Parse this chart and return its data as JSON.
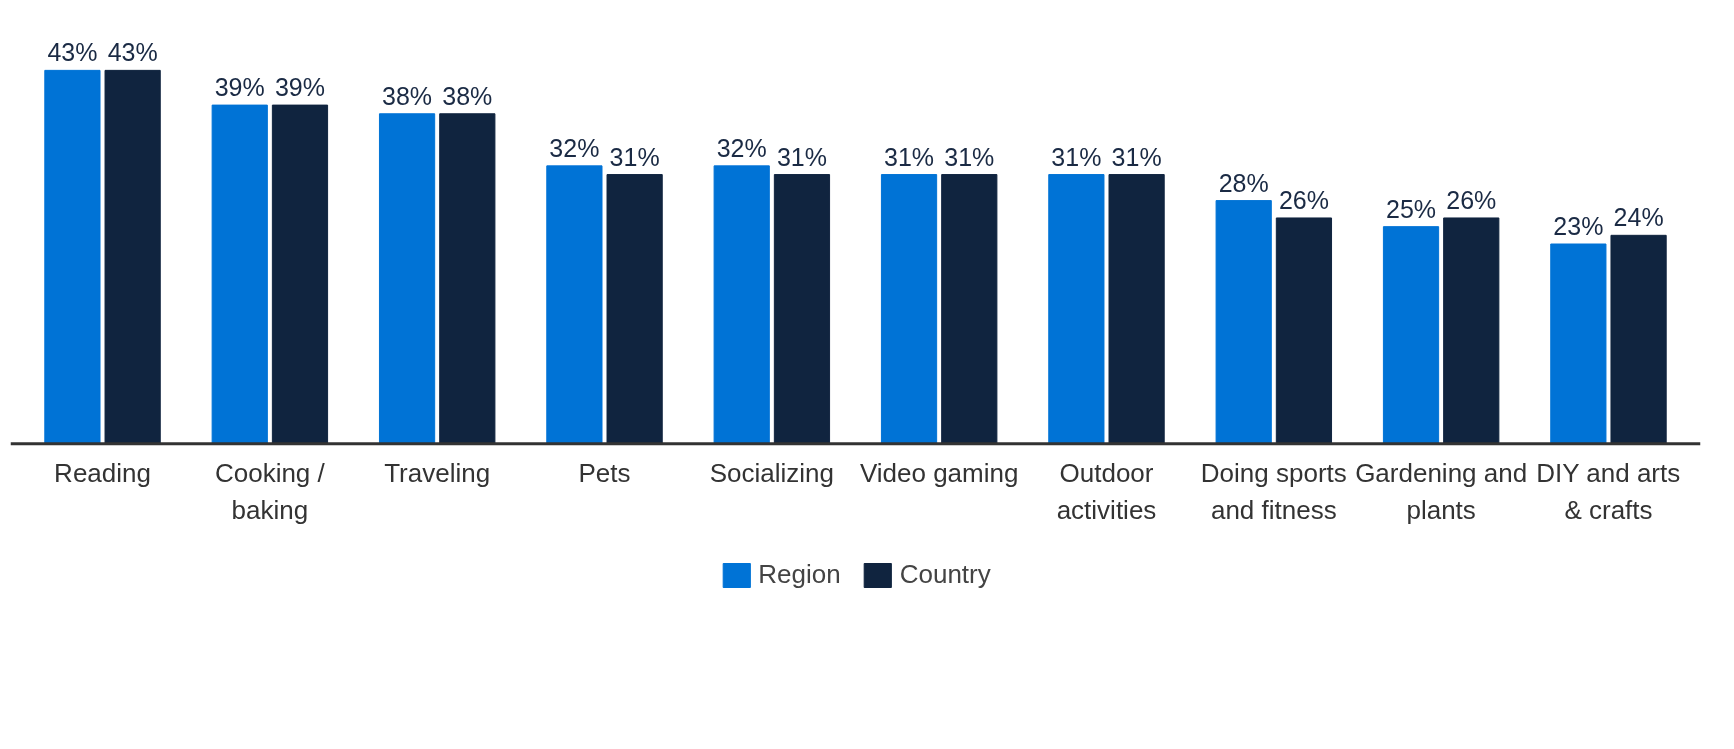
{
  "chart_data": {
    "type": "bar",
    "categories": [
      "Reading",
      "Cooking / baking",
      "Traveling",
      "Pets",
      "Socializing",
      "Video gaming",
      "Outdoor activities",
      "Doing sports and fitness",
      "Gardening and plants",
      "DIY and arts & crafts"
    ],
    "series": [
      {
        "name": "Region",
        "color": "#0073d6",
        "values": [
          43,
          39,
          38,
          32,
          32,
          31,
          31,
          28,
          25,
          23
        ],
        "value_labels": [
          "43%",
          "39%",
          "38%",
          "32%",
          "32%",
          "31%",
          "31%",
          "28%",
          "25%",
          "23%"
        ]
      },
      {
        "name": "Country",
        "color": "#10243f",
        "values": [
          43,
          39,
          38,
          31,
          31,
          31,
          31,
          26,
          26,
          24
        ],
        "value_labels": [
          "43%",
          "39%",
          "38%",
          "31%",
          "31%",
          "31%",
          "31%",
          "26%",
          "26%",
          "24%"
        ]
      }
    ],
    "legend": "bottom",
    "grid": false
  }
}
